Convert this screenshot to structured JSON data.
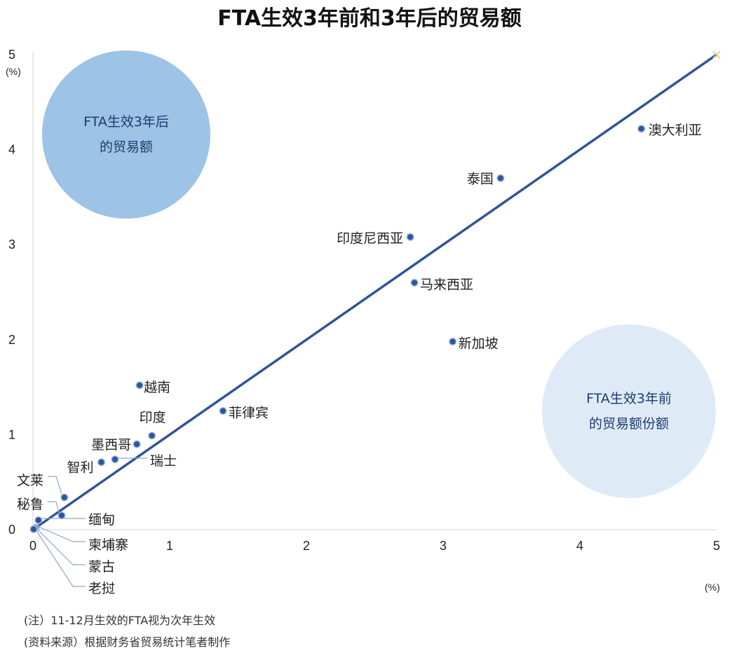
{
  "chart_data": {
    "type": "scatter",
    "title": "FTA生效3年前和3年后的贸易额",
    "x_unit": "(%)",
    "y_unit": "(%)",
    "xlim": [
      0,
      5
    ],
    "ylim": [
      0,
      5
    ],
    "x_ticks": [
      "0",
      "1",
      "2",
      "3",
      "4",
      "5"
    ],
    "y_ticks": [
      "0",
      "1",
      "2",
      "3",
      "4",
      "5"
    ],
    "reference_line": {
      "from": [
        0,
        0
      ],
      "to": [
        5,
        5
      ],
      "color": "#2f5597"
    },
    "grid": false,
    "point_color": "#2f5597",
    "points": [
      {
        "name": "澳大利亚",
        "x": 4.45,
        "y": 4.22
      },
      {
        "name": "泰国",
        "x": 3.42,
        "y": 3.7
      },
      {
        "name": "印度尼西亚",
        "x": 2.76,
        "y": 3.08
      },
      {
        "name": "马来西亚",
        "x": 2.79,
        "y": 2.6
      },
      {
        "name": "新加坡",
        "x": 3.07,
        "y": 1.98
      },
      {
        "name": "越南",
        "x": 0.78,
        "y": 1.52
      },
      {
        "name": "菲律宾",
        "x": 1.39,
        "y": 1.25
      },
      {
        "name": "印度",
        "x": 0.87,
        "y": 0.99
      },
      {
        "name": "墨西哥",
        "x": 0.76,
        "y": 0.9
      },
      {
        "name": "瑞士",
        "x": 0.6,
        "y": 0.74
      },
      {
        "name": "智利",
        "x": 0.5,
        "y": 0.71
      },
      {
        "name": "文莱",
        "x": 0.23,
        "y": 0.34
      },
      {
        "name": "秘鲁",
        "x": 0.21,
        "y": 0.15
      },
      {
        "name": "缅甸",
        "x": 0.04,
        "y": 0.1
      },
      {
        "name": "柬埔寨",
        "x": 0.02,
        "y": 0.02
      },
      {
        "name": "蒙古",
        "x": 0.01,
        "y": 0.01
      },
      {
        "name": "老挝",
        "x": 0.005,
        "y": 0.005
      }
    ],
    "annotations": [
      {
        "text": [
          "FTA生效3年后",
          "的贸易额"
        ],
        "fill": "#9dc3e6"
      },
      {
        "text": [
          "FTA生效3年前",
          "的贸易额份额"
        ],
        "fill": "#deebf7"
      }
    ],
    "notes": [
      "(注）11-12月生效的FTA视为次年生效",
      "(资料来源）根据财务省贸易统计笔者制作"
    ]
  }
}
